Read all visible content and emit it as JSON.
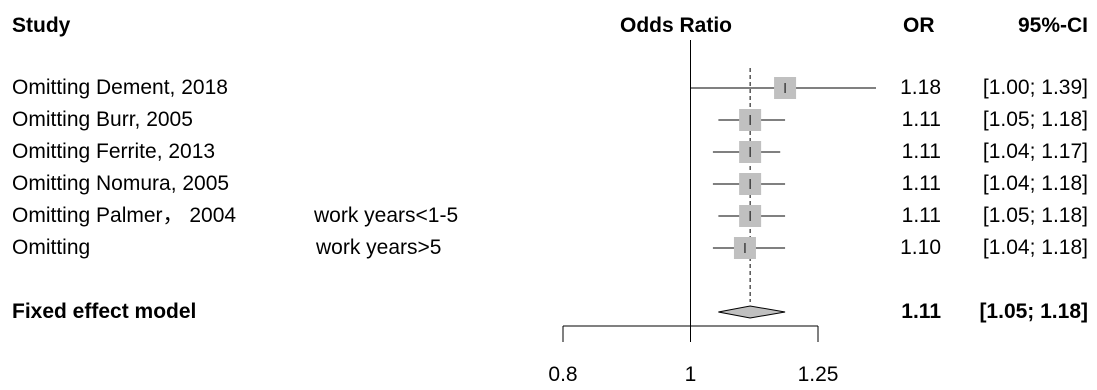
{
  "chart_data": {
    "type": "forest",
    "headers": {
      "study": "Study",
      "effect": "Odds Ratio",
      "or": "OR",
      "ci": "95%-CI"
    },
    "rows": [
      {
        "label": "Omitting Dement, 2018",
        "note": "",
        "or": 1.18,
        "lower": 1.0,
        "upper": 1.39,
        "or_text": "1.18",
        "ci_text": "[1.00; 1.39]"
      },
      {
        "label": "Omitting Burr, 2005",
        "note": "",
        "or": 1.11,
        "lower": 1.05,
        "upper": 1.18,
        "or_text": "1.11",
        "ci_text": "[1.05; 1.18]"
      },
      {
        "label": "Omitting Ferrite, 2013",
        "note": "",
        "or": 1.11,
        "lower": 1.04,
        "upper": 1.17,
        "or_text": "1.11",
        "ci_text": "[1.04; 1.17]"
      },
      {
        "label": "Omitting Nomura, 2005",
        "note": "",
        "or": 1.11,
        "lower": 1.04,
        "upper": 1.18,
        "or_text": "1.11",
        "ci_text": "[1.04; 1.18]"
      },
      {
        "label": "Omitting Palmer， 2004",
        "note": "work years<1-5",
        "or": 1.11,
        "lower": 1.05,
        "upper": 1.18,
        "or_text": "1.11",
        "ci_text": "[1.05; 1.18]"
      },
      {
        "label": "Omitting",
        "note": "work years>5",
        "or": 1.1,
        "lower": 1.04,
        "upper": 1.18,
        "or_text": "1.10",
        "ci_text": "[1.04; 1.18]"
      }
    ],
    "summary": {
      "label": "Fixed effect model",
      "or": 1.11,
      "lower": 1.05,
      "upper": 1.18,
      "or_text": "1.11",
      "ci_text": "[1.05; 1.18]"
    },
    "x_axis": {
      "ticks": [
        0.8,
        1,
        1.25
      ],
      "tick_labels": [
        "0.8",
        "1",
        "1.25"
      ],
      "scale": "log",
      "xlim": [
        0.8,
        1.25
      ]
    },
    "reference_line": 1,
    "colors": {
      "square": "#c0c0c0",
      "diamond": "#c0c0c0",
      "line": "#000000"
    }
  }
}
